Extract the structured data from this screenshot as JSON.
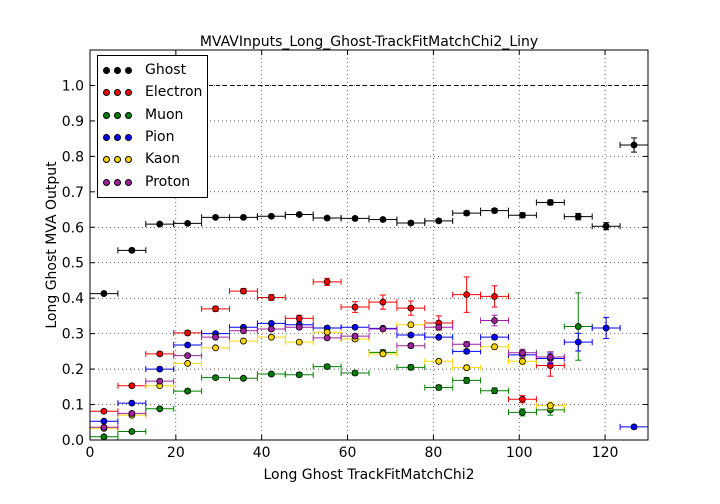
{
  "chart_data": {
    "type": "scatter",
    "title": "MVAVInputs_Long_Ghost-TrackFitMatchChi2_Liny",
    "xlabel": "Long Ghost TrackFitMatchChi2",
    "ylabel": "Long Ghost MVA Output",
    "xlim": [
      0,
      130
    ],
    "ylim": [
      0,
      1.1
    ],
    "xticks": [
      "0",
      "20",
      "40",
      "60",
      "80",
      "100",
      "120"
    ],
    "yticks": [
      "0.0",
      "0.1",
      "0.2",
      "0.3",
      "0.4",
      "0.5",
      "0.6",
      "0.7",
      "0.8",
      "0.9",
      "1.0"
    ],
    "grid": true,
    "legend_position": "top-left",
    "reference_line": 1.0,
    "x_bin_centers": [
      3.25,
      9.75,
      16.25,
      22.75,
      29.25,
      35.75,
      42.25,
      48.75,
      55.25,
      61.75,
      68.25,
      74.75,
      81.25,
      87.75,
      94.25,
      100.75,
      107.25,
      113.75,
      120.25,
      126.75
    ],
    "x_half_width": 3.25,
    "series": [
      {
        "name": "Ghost",
        "color": "#000000",
        "values": [
          0.413,
          0.535,
          0.609,
          0.611,
          0.628,
          0.628,
          0.631,
          0.636,
          0.626,
          0.625,
          0.622,
          0.612,
          0.618,
          0.64,
          0.647,
          0.634,
          0.67,
          0.63,
          0.603,
          0.832
        ],
        "errors": [
          0.003,
          0.004,
          0.004,
          0.004,
          0.004,
          0.004,
          0.004,
          0.004,
          0.004,
          0.004,
          0.004,
          0.005,
          0.005,
          0.006,
          0.006,
          0.007,
          0.007,
          0.009,
          0.01,
          0.02
        ]
      },
      {
        "name": "Electron",
        "color": "#ff0000",
        "values": [
          0.081,
          0.153,
          0.243,
          0.302,
          0.37,
          0.42,
          0.402,
          0.343,
          0.446,
          0.375,
          0.389,
          0.372,
          0.33,
          0.41,
          0.405,
          0.115,
          0.21,
          null,
          null,
          null
        ],
        "errors": [
          0.003,
          0.004,
          0.005,
          0.006,
          0.007,
          0.007,
          0.008,
          0.009,
          0.01,
          0.015,
          0.02,
          0.02,
          0.02,
          0.05,
          0.03,
          0.01,
          0.03,
          null,
          null,
          null
        ]
      },
      {
        "name": "Muon",
        "color": "#008000",
        "values": [
          0.009,
          0.024,
          0.088,
          0.138,
          0.176,
          0.174,
          0.186,
          0.184,
          0.207,
          0.189,
          0.247,
          0.205,
          0.148,
          0.168,
          0.139,
          0.078,
          0.085,
          0.32,
          null,
          null
        ],
        "errors": [
          0.002,
          0.002,
          0.004,
          0.005,
          0.005,
          0.005,
          0.005,
          0.006,
          0.006,
          0.006,
          0.007,
          0.007,
          0.007,
          0.008,
          0.008,
          0.01,
          0.015,
          0.095,
          null,
          null
        ]
      },
      {
        "name": "Pion",
        "color": "#0000ff",
        "values": [
          0.053,
          0.104,
          0.2,
          0.268,
          0.3,
          0.318,
          0.329,
          0.325,
          0.316,
          0.318,
          0.315,
          0.296,
          0.29,
          0.25,
          0.29,
          0.24,
          0.23,
          0.276,
          0.316,
          0.037
        ],
        "errors": [
          0.002,
          0.003,
          0.003,
          0.003,
          0.003,
          0.003,
          0.003,
          0.003,
          0.003,
          0.003,
          0.003,
          0.004,
          0.004,
          0.005,
          0.006,
          0.01,
          0.015,
          0.025,
          0.03,
          0.005
        ]
      },
      {
        "name": "Kaon",
        "color": "#ffd700",
        "values": [
          0.033,
          0.07,
          0.153,
          0.216,
          0.26,
          0.279,
          0.29,
          0.276,
          0.304,
          0.285,
          0.243,
          0.325,
          0.222,
          0.204,
          0.263,
          0.222,
          0.097,
          null,
          null,
          null
        ],
        "errors": [
          0.002,
          0.003,
          0.004,
          0.004,
          0.004,
          0.004,
          0.004,
          0.005,
          0.005,
          0.005,
          0.006,
          0.006,
          0.006,
          0.007,
          0.008,
          0.009,
          0.01,
          null,
          null,
          null
        ]
      },
      {
        "name": "Proton",
        "color": "#a020a0",
        "values": [
          0.036,
          0.075,
          0.166,
          0.238,
          0.29,
          0.308,
          0.313,
          0.318,
          0.288,
          0.293,
          0.313,
          0.266,
          0.318,
          0.27,
          0.337,
          0.246,
          0.234,
          null,
          null,
          null
        ],
        "errors": [
          0.002,
          0.003,
          0.004,
          0.004,
          0.004,
          0.004,
          0.005,
          0.005,
          0.005,
          0.005,
          0.005,
          0.006,
          0.006,
          0.007,
          0.015,
          0.01,
          0.015,
          null,
          null,
          null
        ]
      }
    ]
  }
}
